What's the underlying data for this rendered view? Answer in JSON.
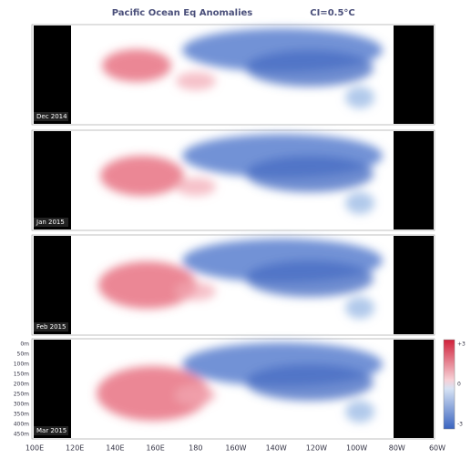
{
  "title": "Pacific Ocean Eq Anomalies",
  "contour_interval": "CI=0.5°C",
  "panels": [
    {
      "label": "Dec 2014"
    },
    {
      "label": "Jan 2015"
    },
    {
      "label": "Feb 2015"
    },
    {
      "label": "Mar 2015"
    }
  ],
  "x_axis": [
    "100E",
    "120E",
    "140E",
    "160E",
    "180",
    "160W",
    "140W",
    "120W",
    "100W",
    "80W",
    "60W"
  ],
  "depth_axis": [
    "0m",
    "50m",
    "100m",
    "150m",
    "200m",
    "250m",
    "300m",
    "350m",
    "400m",
    "450m"
  ],
  "colorbar": [
    "+3",
    "0",
    "-3"
  ]
}
